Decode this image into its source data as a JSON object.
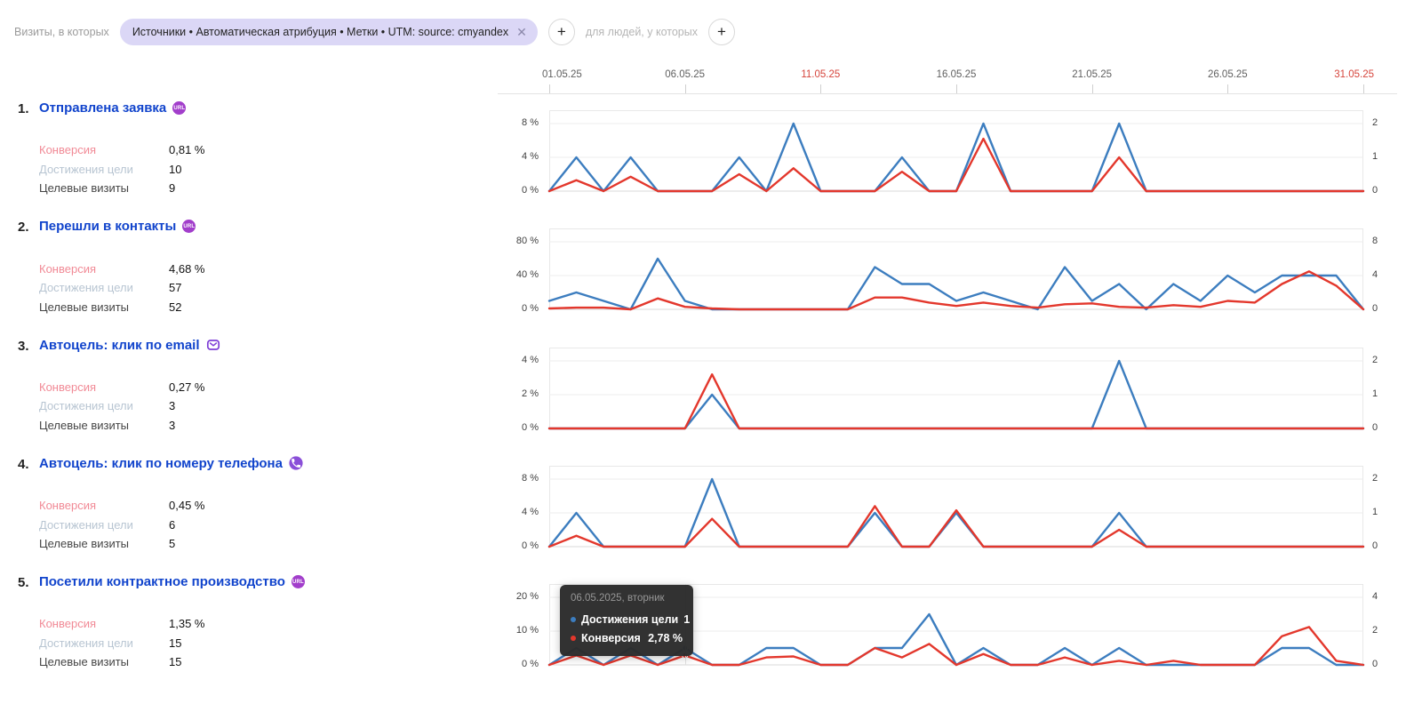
{
  "filter_bar": {
    "visits_label": "Визиты, в которых",
    "segment_chip": "Источники • Автоматическая атрибуция • Метки • UTM: source: cmyandex",
    "remove_chip_icon": "✕",
    "add_condition": "+",
    "people_label": "для людей, у которых",
    "add_people_condition": "+"
  },
  "date_axis": {
    "ticks": [
      {
        "label": "01.05.25",
        "highlight": false
      },
      {
        "label": "06.05.25",
        "highlight": false
      },
      {
        "label": "11.05.25",
        "highlight": true
      },
      {
        "label": "16.05.25",
        "highlight": false
      },
      {
        "label": "21.05.25",
        "highlight": false
      },
      {
        "label": "26.05.25",
        "highlight": false
      },
      {
        "label": "31.05.25",
        "highlight": true
      }
    ]
  },
  "goals": [
    {
      "index": "1.",
      "title": "Отправлена заявка",
      "icon": "url-badge",
      "badge_text": "URL",
      "stats": [
        {
          "label": "Конверсия",
          "value": "0,81 %",
          "type": "conversion"
        },
        {
          "label": "Достижения цели",
          "value": "10",
          "type": "reaches"
        },
        {
          "label": "Целевые визиты",
          "value": "9",
          "type": "visits"
        }
      ]
    },
    {
      "index": "2.",
      "title": "Перешли в контакты",
      "icon": "url-badge",
      "badge_text": "URL",
      "stats": [
        {
          "label": "Конверсия",
          "value": "4,68 %",
          "type": "conversion"
        },
        {
          "label": "Достижения цели",
          "value": "57",
          "type": "reaches"
        },
        {
          "label": "Целевые визиты",
          "value": "52",
          "type": "visits"
        }
      ]
    },
    {
      "index": "3.",
      "title": "Автоцель: клик по email",
      "icon": "email-icon",
      "badge_text": "",
      "stats": [
        {
          "label": "Конверсия",
          "value": "0,27 %",
          "type": "conversion"
        },
        {
          "label": "Достижения цели",
          "value": "3",
          "type": "reaches"
        },
        {
          "label": "Целевые визиты",
          "value": "3",
          "type": "visits"
        }
      ]
    },
    {
      "index": "4.",
      "title": "Автоцель: клик по номеру телефона",
      "icon": "phone-icon",
      "badge_text": "",
      "stats": [
        {
          "label": "Конверсия",
          "value": "0,45 %",
          "type": "conversion"
        },
        {
          "label": "Достижения цели",
          "value": "6",
          "type": "reaches"
        },
        {
          "label": "Целевые визиты",
          "value": "5",
          "type": "visits"
        }
      ]
    },
    {
      "index": "5.",
      "title": "Посетили контрактное производство",
      "icon": "url-badge",
      "badge_text": "URL",
      "stats": [
        {
          "label": "Конверсия",
          "value": "1,35 %",
          "type": "conversion"
        },
        {
          "label": "Достижения цели",
          "value": "15",
          "type": "reaches"
        },
        {
          "label": "Целевые визиты",
          "value": "15",
          "type": "visits"
        }
      ]
    }
  ],
  "tooltip": {
    "date": "06.05.2025, вторник",
    "rows": [
      {
        "label": "Достижения цели",
        "value": "1",
        "bullet": "#3c7dbf"
      },
      {
        "label": "Конверсия",
        "value": "2,78 %",
        "bullet": "#e3372c"
      }
    ]
  },
  "chart_data": [
    {
      "goal": "Отправлена заявка",
      "type": "line",
      "x_start": "01.05.25",
      "x_end": "31.05.25",
      "x_unit": "day",
      "points": 31,
      "left_axis": {
        "name": "Конверсия, %",
        "max": 8,
        "ticks": [
          "8 %",
          "4 %",
          "0 %"
        ]
      },
      "right_axis": {
        "name": "Достижения цели",
        "max": 2,
        "ticks": [
          "2",
          "1",
          "0"
        ]
      },
      "series": [
        {
          "name": "Достижения цели",
          "axis": "right",
          "color": "#3c7dbf",
          "values": [
            0,
            1,
            0,
            1,
            0,
            0,
            0,
            1,
            0,
            2,
            0,
            0,
            0,
            1,
            0,
            0,
            2,
            0,
            0,
            0,
            0,
            2,
            0,
            0,
            0,
            0,
            0,
            0,
            0,
            0,
            0
          ]
        },
        {
          "name": "Конверсия",
          "axis": "left",
          "unit": "%",
          "color": "#e3372c",
          "values": [
            0,
            1.3,
            0,
            1.7,
            0,
            0,
            0,
            2,
            0,
            2.7,
            0,
            0,
            0,
            2.3,
            0,
            0,
            6.2,
            0,
            0,
            0,
            0,
            4,
            0,
            0,
            0,
            0,
            0,
            0,
            0,
            0,
            0
          ]
        }
      ]
    },
    {
      "goal": "Перешли в контакты",
      "type": "line",
      "x_start": "01.05.25",
      "x_end": "31.05.25",
      "x_unit": "day",
      "points": 31,
      "left_axis": {
        "name": "Конверсия, %",
        "max": 80,
        "ticks": [
          "80 %",
          "40 %",
          "0 %"
        ]
      },
      "right_axis": {
        "name": "Достижения цели",
        "max": 8,
        "ticks": [
          "8",
          "4",
          "0"
        ]
      },
      "series": [
        {
          "name": "Достижения цели",
          "axis": "right",
          "color": "#3c7dbf",
          "values": [
            1,
            2,
            1,
            0,
            6,
            1,
            0,
            0,
            0,
            0,
            0,
            0,
            5,
            3,
            3,
            1,
            2,
            1,
            0,
            5,
            1,
            3,
            0,
            3,
            1,
            4,
            2,
            4,
            4,
            4,
            0
          ]
        },
        {
          "name": "Конверсия",
          "axis": "left",
          "unit": "%",
          "color": "#e3372c",
          "values": [
            1,
            2,
            2,
            0,
            13,
            3,
            1,
            0,
            0,
            0,
            0,
            0,
            14,
            14,
            8,
            4,
            8,
            4,
            2,
            6,
            7,
            3,
            2,
            5,
            3,
            10,
            8,
            30,
            45,
            28,
            0
          ]
        }
      ]
    },
    {
      "goal": "Автоцель: клик по email",
      "type": "line",
      "x_start": "01.05.25",
      "x_end": "31.05.25",
      "x_unit": "day",
      "points": 31,
      "left_axis": {
        "name": "Конверсия, %",
        "max": 4,
        "ticks": [
          "4 %",
          "2 %",
          "0 %"
        ]
      },
      "right_axis": {
        "name": "Достижения цели",
        "max": 2,
        "ticks": [
          "2",
          "1",
          "0"
        ]
      },
      "series": [
        {
          "name": "Достижения цели",
          "axis": "right",
          "color": "#3c7dbf",
          "values": [
            0,
            0,
            0,
            0,
            0,
            0,
            1,
            0,
            0,
            0,
            0,
            0,
            0,
            0,
            0,
            0,
            0,
            0,
            0,
            0,
            0,
            2,
            0,
            0,
            0,
            0,
            0,
            0,
            0,
            0,
            0
          ]
        },
        {
          "name": "Конверсия",
          "axis": "left",
          "unit": "%",
          "color": "#e3372c",
          "values": [
            0,
            0,
            0,
            0,
            0,
            0,
            3.2,
            0,
            0,
            0,
            0,
            0,
            0,
            0,
            0,
            0,
            0,
            0,
            0,
            0,
            0,
            0,
            0,
            0,
            0,
            0,
            0,
            0,
            0,
            0,
            0
          ]
        }
      ]
    },
    {
      "goal": "Автоцель: клик по номеру телефона",
      "type": "line",
      "x_start": "01.05.25",
      "x_end": "31.05.25",
      "x_unit": "day",
      "points": 31,
      "left_axis": {
        "name": "Конверсия, %",
        "max": 8,
        "ticks": [
          "8 %",
          "4 %",
          "0 %"
        ]
      },
      "right_axis": {
        "name": "Достижения цели",
        "max": 2,
        "ticks": [
          "2",
          "1",
          "0"
        ]
      },
      "series": [
        {
          "name": "Достижения цели",
          "axis": "right",
          "color": "#3c7dbf",
          "values": [
            0,
            1,
            0,
            0,
            0,
            0,
            2,
            0,
            0,
            0,
            0,
            0,
            1,
            0,
            0,
            1,
            0,
            0,
            0,
            0,
            0,
            1,
            0,
            0,
            0,
            0,
            0,
            0,
            0,
            0,
            0
          ]
        },
        {
          "name": "Конверсия",
          "axis": "left",
          "unit": "%",
          "color": "#e3372c",
          "values": [
            0,
            1.3,
            0,
            0,
            0,
            0,
            3.3,
            0,
            0,
            0,
            0,
            0,
            4.8,
            0,
            0,
            4.3,
            0,
            0,
            0,
            0,
            0,
            2,
            0,
            0,
            0,
            0,
            0,
            0,
            0,
            0,
            0
          ]
        }
      ]
    },
    {
      "goal": "Посетили контрактное производство",
      "type": "line",
      "x_start": "01.05.25",
      "x_end": "31.05.25",
      "x_unit": "day",
      "points": 31,
      "left_axis": {
        "name": "Конверсия, %",
        "max": 20,
        "ticks": [
          "20 %",
          "10 %",
          "0 %"
        ]
      },
      "right_axis": {
        "name": "Достижения цели",
        "max": 4,
        "ticks": [
          "4",
          "2",
          "0"
        ]
      },
      "hover_marker": {
        "day": 6,
        "reaches": 1,
        "conversion_pct": 2.78
      },
      "series": [
        {
          "name": "Достижения цели",
          "axis": "right",
          "color": "#3c7dbf",
          "values": [
            0,
            1,
            0,
            1,
            0,
            1,
            0,
            0,
            1,
            1,
            0,
            0,
            1,
            1,
            3,
            0,
            1,
            0,
            0,
            1,
            0,
            1,
            0,
            0,
            0,
            0,
            0,
            1,
            1,
            0,
            0
          ]
        },
        {
          "name": "Конверсия",
          "axis": "left",
          "unit": "%",
          "color": "#e3372c",
          "values": [
            0,
            2.8,
            0,
            2.8,
            0,
            2.78,
            0,
            0,
            2.2,
            2.5,
            0,
            0,
            5,
            2.2,
            6.2,
            0,
            3.2,
            0,
            0,
            2.2,
            0,
            1.2,
            0,
            1.2,
            0,
            0,
            0,
            8.5,
            11.2,
            1.2,
            0
          ]
        }
      ]
    }
  ],
  "colors": {
    "goal_link": "#1144cc",
    "series_reaches": "#3c7dbf",
    "series_conversion": "#e3372c",
    "date_highlight": "#d6453c",
    "chip_bg": "#dbd7f6",
    "badge_purple": "#a23ecb"
  }
}
